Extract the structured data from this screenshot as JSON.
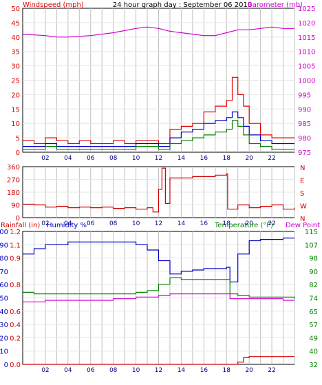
{
  "colors": {
    "wind": "#e00000",
    "wind_avg": "#0000c0",
    "wind_gust_low": "#008000",
    "baro": "#d000d0",
    "dir": "#d00000",
    "rain_axis": "#d00000",
    "humidity": "#0000c0",
    "temperature": "#008000",
    "dewpoint": "#d000d0",
    "grid": "#c0c0c0",
    "frame": "#000000"
  },
  "chart_data": [
    {
      "type": "line",
      "title": "24 hour graph day : September 06 2010",
      "left_axis": {
        "label": "Windspeed (mph)",
        "ticks": [
          "0",
          "5",
          "10",
          "15",
          "20",
          "25",
          "30",
          "35",
          "40",
          "45",
          "50"
        ],
        "ylim": [
          0,
          50
        ]
      },
      "right_axis": {
        "label": "Barometer (mb)",
        "ticks": [
          "975",
          "980",
          "985",
          "990",
          "995",
          "1000",
          "1005",
          "1010",
          "1015",
          "1020",
          "1025"
        ],
        "ylim": [
          975,
          1025
        ]
      },
      "x_ticks": [
        "02",
        "04",
        "06",
        "08",
        "10",
        "12",
        "14",
        "16",
        "18",
        "20",
        "22"
      ],
      "xlim": [
        0,
        24
      ],
      "grid": true,
      "series": [
        {
          "axis": "left",
          "x": [
            0,
            1,
            2,
            3,
            4,
            5,
            6,
            7,
            8,
            9,
            10,
            11,
            12,
            13,
            14,
            15,
            16,
            17,
            18,
            18.5,
            19,
            19.5,
            20,
            21,
            22,
            23,
            24
          ],
          "values": [
            4,
            3,
            5,
            4,
            3,
            4,
            3,
            3,
            4,
            3,
            4,
            4,
            3,
            8,
            9,
            10,
            14,
            16,
            18,
            26,
            20,
            16,
            10,
            6,
            5,
            5,
            5
          ]
        },
        {
          "axis": "left",
          "x": [
            0,
            1,
            2,
            3,
            4,
            5,
            6,
            7,
            8,
            9,
            10,
            11,
            12,
            13,
            14,
            15,
            16,
            17,
            18,
            18.5,
            19,
            19.5,
            20,
            21,
            22,
            23,
            24
          ],
          "values": [
            2,
            2,
            3,
            2,
            2,
            2,
            2,
            2,
            2,
            2,
            3,
            3,
            2,
            5,
            7,
            8,
            10,
            11,
            12,
            14,
            12,
            9,
            6,
            4,
            3,
            3,
            3
          ]
        },
        {
          "axis": "left",
          "x": [
            0,
            1,
            2,
            3,
            4,
            5,
            6,
            7,
            8,
            9,
            10,
            11,
            12,
            13,
            14,
            15,
            16,
            17,
            18,
            18.5,
            19,
            19.5,
            20,
            21,
            22,
            23,
            24
          ],
          "values": [
            1,
            1,
            2,
            1,
            1,
            1,
            1,
            1,
            1,
            1,
            2,
            2,
            1,
            3,
            4,
            5,
            6,
            7,
            8,
            11,
            9,
            6,
            3,
            2,
            1,
            1,
            1
          ]
        },
        {
          "axis": "right",
          "x": [
            0,
            2,
            3,
            4,
            6,
            8,
            10,
            11,
            12,
            13,
            14,
            15,
            16,
            17,
            18,
            19,
            20,
            21,
            22,
            23,
            24
          ],
          "values": [
            1016,
            1015.5,
            1015,
            1015,
            1015.5,
            1016.5,
            1018,
            1018.5,
            1018,
            1017,
            1016.5,
            1016,
            1015.5,
            1015.5,
            1016.5,
            1017.5,
            1017.5,
            1018,
            1018.5,
            1018,
            1018
          ]
        }
      ]
    },
    {
      "type": "line",
      "left_axis": {
        "label": "",
        "ticks": [
          "0",
          "90",
          "180",
          "270",
          "360"
        ],
        "ylim": [
          0,
          360
        ]
      },
      "right_axis": {
        "label": "",
        "ticks": [
          "N",
          "W",
          "S",
          "E",
          "N"
        ]
      },
      "x_ticks": [
        "02",
        "04",
        "06",
        "08",
        "10",
        "12",
        "14",
        "16",
        "18",
        "20",
        "22"
      ],
      "xlim": [
        0,
        24
      ],
      "grid": true,
      "series": [
        {
          "x": [
            0,
            1,
            2,
            3,
            4,
            5,
            6,
            7,
            8,
            9,
            10,
            11,
            11.5,
            12,
            12.3,
            12.6,
            13,
            14,
            15,
            16,
            17,
            18,
            18.1,
            19,
            20,
            21,
            22,
            23,
            24
          ],
          "values": [
            95,
            90,
            75,
            80,
            70,
            75,
            70,
            75,
            65,
            70,
            60,
            70,
            40,
            200,
            350,
            100,
            280,
            280,
            290,
            290,
            300,
            310,
            60,
            90,
            70,
            80,
            90,
            60,
            70
          ]
        }
      ]
    },
    {
      "type": "line",
      "left_axis_1": {
        "label": "Rainfall (in)",
        "ticks": [
          "0.0",
          "0.2",
          "0.4",
          "0.6",
          "0.8",
          "0.9",
          "1.1",
          "1.2"
        ],
        "ylim": [
          0,
          1.2
        ]
      },
      "left_axis_2": {
        "label": "Humidity %",
        "ticks": [
          "0",
          "10",
          "20",
          "30",
          "40",
          "50",
          "60",
          "70",
          "80",
          "90",
          "100"
        ],
        "ylim": [
          0,
          100
        ]
      },
      "right_axis_label_1": "Temperature (°F)",
      "right_axis_label_2": "Dew Point",
      "right_axis": {
        "ticks": [
          "32",
          "40",
          "49",
          "57",
          "65",
          "74",
          "82",
          "90",
          "98",
          "107",
          "115"
        ],
        "ylim": [
          32,
          115
        ]
      },
      "x_ticks": [
        "02",
        "04",
        "06",
        "08",
        "10",
        "12",
        "14",
        "16",
        "18",
        "20",
        "22"
      ],
      "xlim": [
        0,
        24
      ],
      "grid": true,
      "series": [
        {
          "axis": "humidity",
          "x": [
            0,
            1,
            2,
            4,
            6,
            8,
            10,
            11,
            12,
            13,
            14,
            15,
            16,
            17,
            18,
            18.3,
            19,
            20,
            21,
            22,
            23,
            24
          ],
          "values": [
            83,
            87,
            90,
            92,
            92,
            92,
            90,
            86,
            78,
            68,
            70,
            71,
            72,
            72,
            73,
            62,
            83,
            93,
            94,
            94,
            95,
            95
          ]
        },
        {
          "axis": "temperature",
          "x": [
            0,
            1,
            2,
            4,
            6,
            8,
            10,
            11,
            12,
            13,
            14,
            15,
            16,
            17,
            18,
            18.3,
            19,
            20,
            21,
            22,
            23,
            24
          ],
          "values": [
            77,
            76,
            76,
            76,
            76,
            76,
            77,
            78,
            82,
            86,
            85,
            85,
            85,
            85,
            85,
            76,
            75,
            74,
            74,
            74,
            74,
            73
          ]
        },
        {
          "axis": "temperature",
          "x": [
            0,
            2,
            4,
            6,
            8,
            10,
            11,
            12,
            13,
            14,
            15,
            16,
            17,
            18,
            18.3,
            19,
            20,
            21,
            22,
            23,
            24
          ],
          "values": [
            71,
            72,
            72,
            72,
            73,
            74,
            74,
            75,
            76,
            76,
            76,
            76,
            76,
            76,
            73,
            73,
            73,
            73,
            73,
            72,
            72
          ]
        },
        {
          "axis": "rainfall",
          "x": [
            0,
            18.5,
            19,
            19.5,
            20,
            24
          ],
          "values": [
            0,
            0,
            0.02,
            0.06,
            0.07,
            0.07
          ]
        }
      ]
    }
  ]
}
